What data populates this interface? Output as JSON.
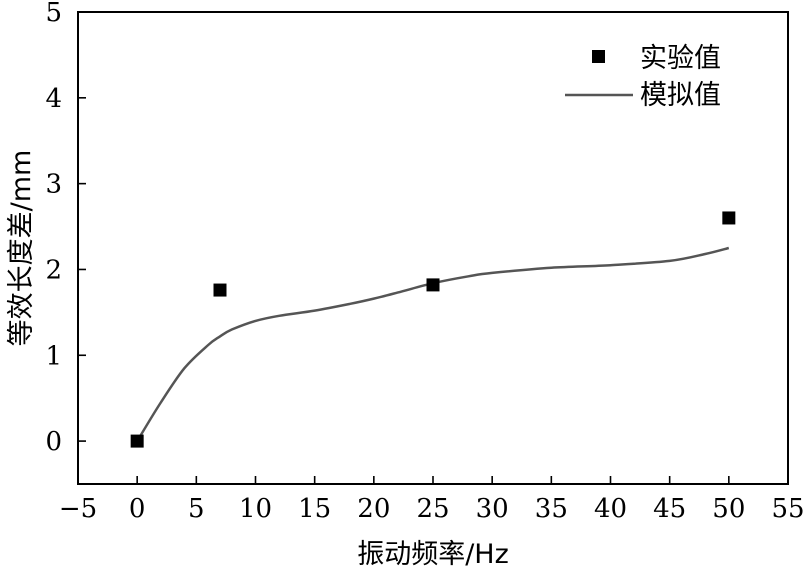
{
  "chart_data": {
    "type": "scatter",
    "title": "",
    "xlabel": "振动频率/Hz",
    "ylabel": "等效长度差/mm",
    "xlim": [
      -5,
      55
    ],
    "ylim": [
      -0.5,
      5
    ],
    "xticks": [
      -5,
      0,
      5,
      10,
      15,
      20,
      25,
      30,
      35,
      40,
      45,
      50,
      55
    ],
    "xtick_labels": [
      "−5",
      "0",
      "5",
      "10",
      "15",
      "20",
      "25",
      "30",
      "35",
      "40",
      "45",
      "50",
      "55"
    ],
    "yticks": [
      0,
      1,
      2,
      3,
      4,
      5
    ],
    "ytick_labels": [
      "0",
      "1",
      "2",
      "3",
      "4",
      "5"
    ],
    "grid": false,
    "legend_position": "top-right",
    "series": [
      {
        "name": "实验值",
        "kind": "scatter",
        "marker": "square",
        "color": "#000000",
        "x": [
          0,
          7,
          25,
          50
        ],
        "y": [
          0,
          1.76,
          1.82,
          2.6
        ]
      },
      {
        "name": "模拟值",
        "kind": "line",
        "color": "#555555",
        "x": [
          0,
          2,
          4,
          6,
          7,
          8,
          10,
          12,
          15,
          18,
          20,
          22,
          25,
          28,
          30,
          35,
          40,
          45,
          48,
          50
        ],
        "y": [
          0,
          0.45,
          0.85,
          1.12,
          1.22,
          1.3,
          1.4,
          1.46,
          1.52,
          1.6,
          1.66,
          1.73,
          1.84,
          1.92,
          1.96,
          2.02,
          2.05,
          2.1,
          2.18,
          2.25
        ]
      }
    ]
  }
}
